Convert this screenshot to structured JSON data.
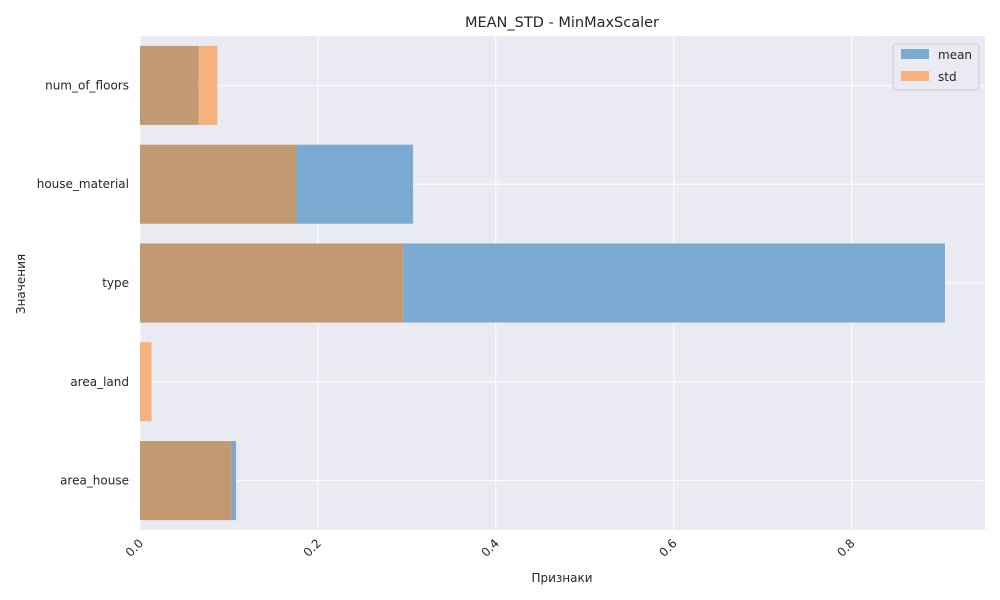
{
  "chart_data": {
    "type": "bar",
    "orientation": "horizontal",
    "title": "MEAN_STD - MinMaxScaler",
    "xlabel": "Признаки",
    "ylabel": "Значения",
    "categories": [
      "num_of_floors",
      "house_material",
      "type",
      "area_land",
      "area_house"
    ],
    "series": [
      {
        "name": "mean",
        "color": "#7aa9d1",
        "values": [
          0.066,
          0.307,
          0.905,
          0.0,
          0.108
        ]
      },
      {
        "name": "std",
        "color": "#f5b27c",
        "values": [
          0.087,
          0.176,
          0.296,
          0.013,
          0.103
        ]
      }
    ],
    "overlap_color": "#c29a72",
    "xlim": [
      0.0,
      0.95
    ],
    "xticks": [
      0.0,
      0.2,
      0.4,
      0.6,
      0.8
    ],
    "xtick_labels": [
      "0.0",
      "0.2",
      "0.4",
      "0.6",
      "0.8"
    ],
    "grid": true,
    "legend_position": "top-right",
    "background": "#eaeaf2"
  }
}
